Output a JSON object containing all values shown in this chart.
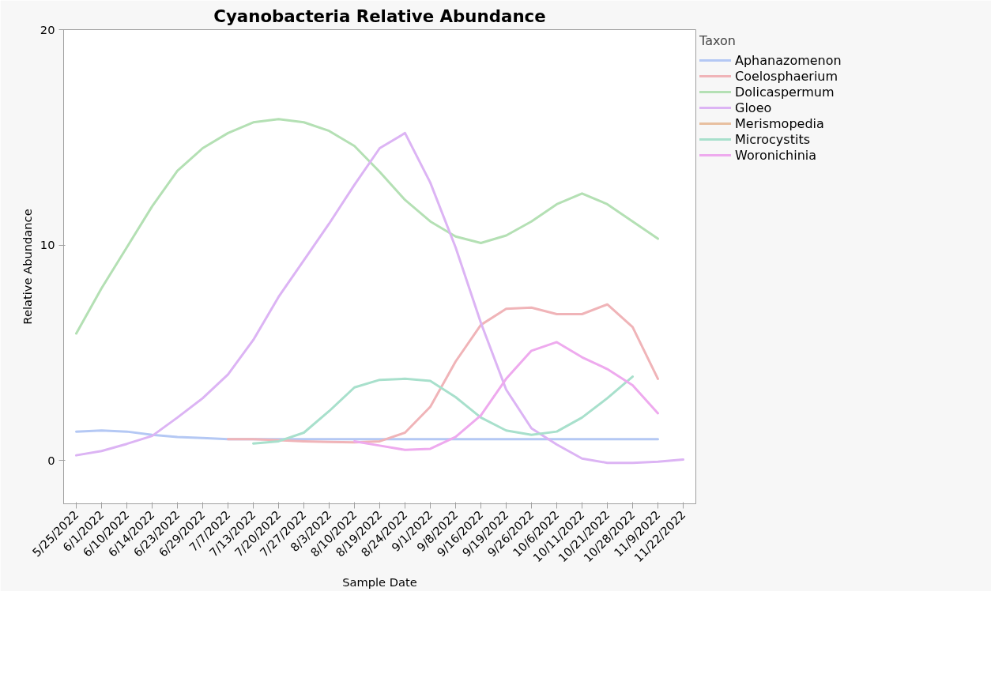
{
  "chart_data": {
    "type": "line",
    "title": "Cyanobacteria Relative Abundance",
    "xlabel": "Sample Date",
    "ylabel": "Relative Abundance",
    "legend_title": "Taxon",
    "categories": [
      "5/25/2022",
      "6/1/2022",
      "6/10/2022",
      "6/14/2022",
      "6/23/2022",
      "6/29/2022",
      "7/7/2022",
      "7/13/2022",
      "7/20/2022",
      "7/27/2022",
      "8/3/2022",
      "8/10/2022",
      "8/19/2022",
      "8/24/2022",
      "9/1/2022",
      "9/8/2022",
      "9/16/2022",
      "9/19/2022",
      "9/26/2022",
      "10/6/2022",
      "10/11/2022",
      "10/21/2022",
      "10/28/2022",
      "11/9/2022",
      "11/22/2022"
    ],
    "series": [
      {
        "name": "Aphanazomenon",
        "color": "#b4c8f4",
        "values": [
          1.35,
          1.4,
          1.35,
          1.2,
          1.1,
          1.05,
          1.0,
          1.0,
          1.0,
          1.0,
          1.0,
          1.0,
          1.0,
          1.0,
          1.0,
          1.0,
          1.0,
          1.0,
          1.0,
          1.0,
          1.0,
          1.0,
          1.0,
          1.0,
          null
        ]
      },
      {
        "name": "Coelosphaerium",
        "color": "#f0b4b8",
        "values": [
          null,
          null,
          null,
          null,
          null,
          null,
          1.0,
          1.0,
          0.95,
          0.9,
          0.87,
          0.85,
          0.9,
          1.3,
          2.5,
          4.6,
          6.3,
          7.05,
          7.1,
          6.8,
          6.8,
          7.25,
          6.2,
          3.8,
          null
        ]
      },
      {
        "name": "Dolicaspermum",
        "color": "#b4e0b4",
        "values": [
          5.9,
          8.0,
          9.9,
          11.8,
          13.45,
          14.5,
          15.2,
          15.7,
          15.85,
          15.7,
          15.3,
          14.6,
          13.4,
          12.1,
          11.1,
          10.4,
          10.1,
          10.45,
          11.1,
          11.9,
          12.4,
          11.9,
          11.1,
          10.3,
          null
        ]
      },
      {
        "name": "Gloeo",
        "color": "#dcb4f4",
        "values": [
          0.25,
          0.45,
          0.78,
          1.15,
          2.0,
          2.9,
          4.0,
          5.6,
          7.6,
          9.3,
          11.0,
          12.8,
          14.5,
          15.2,
          12.9,
          9.9,
          6.4,
          3.3,
          1.5,
          0.75,
          0.1,
          -0.1,
          -0.1,
          -0.05,
          0.05
        ]
      },
      {
        "name": "Merismopedia",
        "color": "#e8c0a0",
        "values": [
          null,
          null,
          null,
          null,
          null,
          null,
          null,
          null,
          null,
          null,
          null,
          null,
          null,
          null,
          null,
          null,
          null,
          null,
          null,
          null,
          null,
          null,
          null,
          null,
          null
        ]
      },
      {
        "name": "Microcystits",
        "color": "#a8e0cc",
        "values": [
          null,
          null,
          null,
          null,
          null,
          null,
          null,
          0.8,
          0.9,
          1.3,
          2.3,
          3.4,
          3.75,
          3.8,
          3.7,
          2.95,
          2.0,
          1.4,
          1.2,
          1.35,
          2.0,
          2.9,
          3.9,
          null,
          null
        ]
      },
      {
        "name": "Woronichinia",
        "color": "#eeaaee",
        "values": [
          null,
          null,
          null,
          null,
          null,
          null,
          null,
          null,
          null,
          null,
          null,
          0.9,
          0.7,
          0.5,
          0.55,
          1.1,
          2.1,
          3.8,
          5.1,
          5.5,
          4.8,
          4.25,
          3.5,
          2.2,
          null
        ]
      }
    ],
    "ylim": [
      -2,
      20
    ],
    "yticks": [
      0,
      10,
      20
    ],
    "grid": false,
    "legend": "right",
    "line_style": "solid",
    "marker": "none"
  }
}
